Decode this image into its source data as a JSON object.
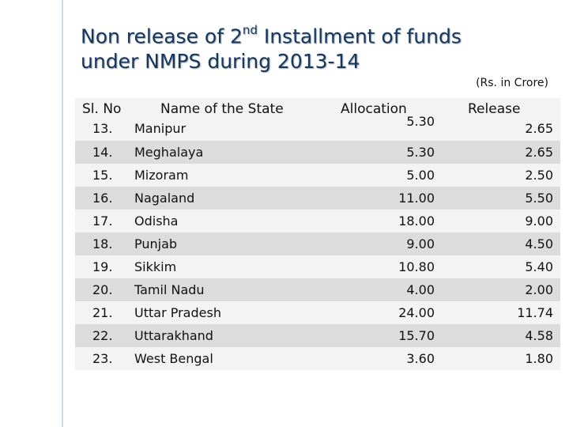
{
  "slide": {
    "title_part1": "Non release of 2",
    "title_sup": "nd",
    "title_part2": " Installment  of funds",
    "title_line2": "under NMPS during 2013-14",
    "unit_note": "(Rs. in Crore)"
  },
  "table": {
    "headers": {
      "sl_no": "Sl. No",
      "state": "Name of the State",
      "allocation": "Allocation",
      "release": "Release"
    },
    "rows": [
      {
        "sl": "13.",
        "state": "Manipur",
        "allocation": "5.30",
        "release": "2.65"
      },
      {
        "sl": "14.",
        "state": "Meghalaya",
        "allocation": "5.30",
        "release": "2.65"
      },
      {
        "sl": "15.",
        "state": "Mizoram",
        "allocation": "5.00",
        "release": "2.50"
      },
      {
        "sl": "16.",
        "state": "Nagaland",
        "allocation": "11.00",
        "release": "5.50"
      },
      {
        "sl": "17.",
        "state": "Odisha",
        "allocation": "18.00",
        "release": "9.00"
      },
      {
        "sl": "18.",
        "state": "Punjab",
        "allocation": "9.00",
        "release": "4.50"
      },
      {
        "sl": "19.",
        "state": "Sikkim",
        "allocation": "10.80",
        "release": "5.40"
      },
      {
        "sl": "20.",
        "state": "Tamil Nadu",
        "allocation": "4.00",
        "release": "2.00"
      },
      {
        "sl": "21.",
        "state": "Uttar Pradesh",
        "allocation": "24.00",
        "release": "11.74"
      },
      {
        "sl": "22.",
        "state": "Uttarakhand",
        "allocation": "15.70",
        "release": "4.58"
      },
      {
        "sl": "23.",
        "state": "West Bengal",
        "allocation": "3.60",
        "release": "1.80"
      }
    ]
  }
}
